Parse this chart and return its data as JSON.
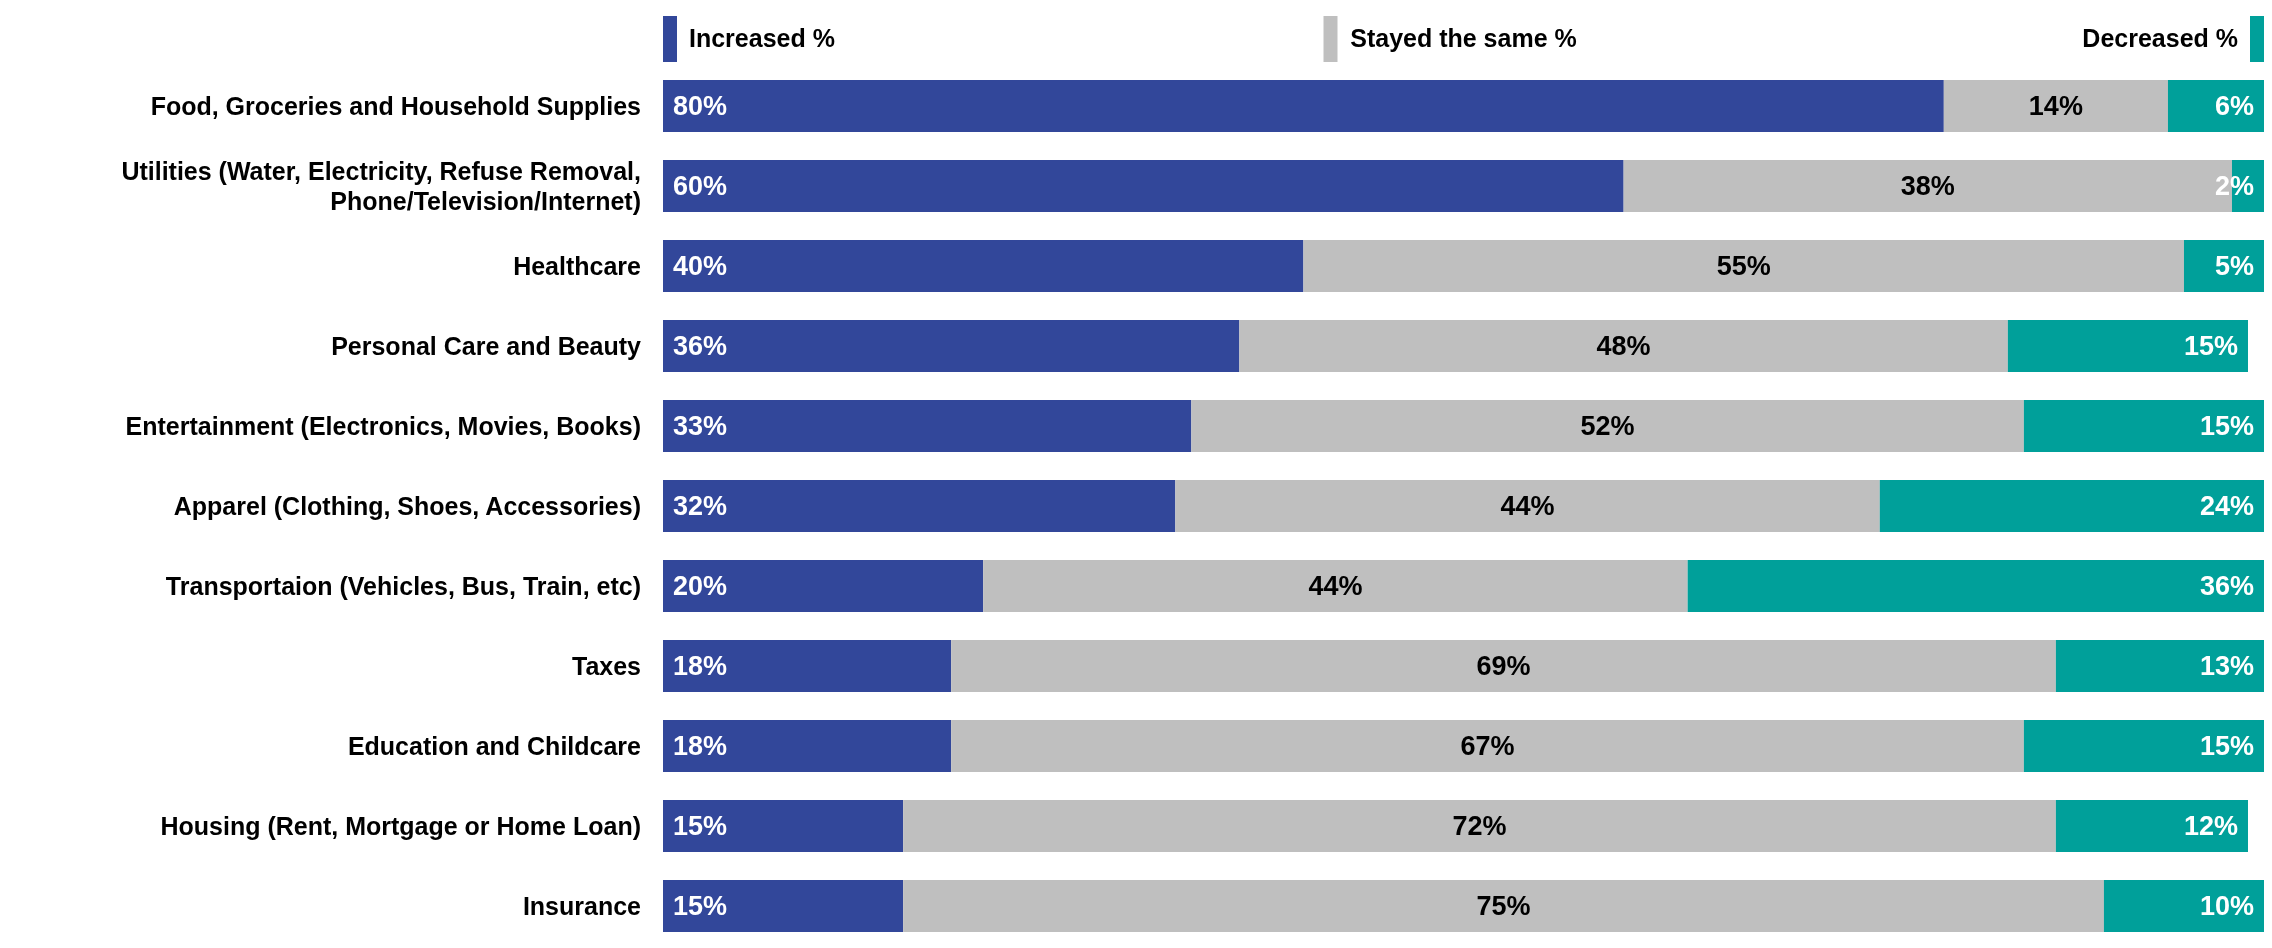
{
  "chart_data": {
    "type": "bar",
    "orientation": "horizontal",
    "stacked": true,
    "legend": "top",
    "tick_labels": "y",
    "categories": [
      "Food, Groceries and Household Supplies",
      "Utilities (Water, Electricity, Refuse Removal, Phone/Television/Internet)",
      "Healthcare",
      "Personal Care and Beauty",
      "Entertainment (Electronics, Movies, Books)",
      "Apparel (Clothing, Shoes, Accessories)",
      "Transportaion (Vehicles, Bus, Train, etc)",
      "Taxes",
      "Education and Childcare",
      "Housing (Rent, Mortgage or Home Loan)",
      "Insurance"
    ],
    "series": [
      {
        "name": "Increased %",
        "color": "#32479a",
        "values": [
          80,
          60,
          40,
          36,
          33,
          32,
          20,
          18,
          18,
          15,
          15
        ],
        "value_labels": [
          "80%",
          "60%",
          "40%",
          "36%",
          "33%",
          "32%",
          "20%",
          "18%",
          "18%",
          "15%",
          "15%"
        ]
      },
      {
        "name": "Stayed the same %",
        "color": "#bfbfbf",
        "values": [
          14,
          38,
          55,
          48,
          52,
          44,
          44,
          69,
          67,
          72,
          75
        ],
        "value_labels": [
          "14%",
          "38%",
          "55%",
          "48%",
          "52%",
          "44%",
          "44%",
          "69%",
          "67%",
          "72%",
          "75%"
        ]
      },
      {
        "name": "Decreased %",
        "color": "#00a09a",
        "values": [
          6,
          2,
          5,
          15,
          15,
          24,
          36,
          13,
          15,
          12,
          10
        ],
        "value_labels": [
          "6%",
          "2%",
          "5%",
          "15%",
          "15%",
          "24%",
          "36%",
          "13%",
          "15%",
          "12%",
          "10%"
        ]
      }
    ]
  }
}
